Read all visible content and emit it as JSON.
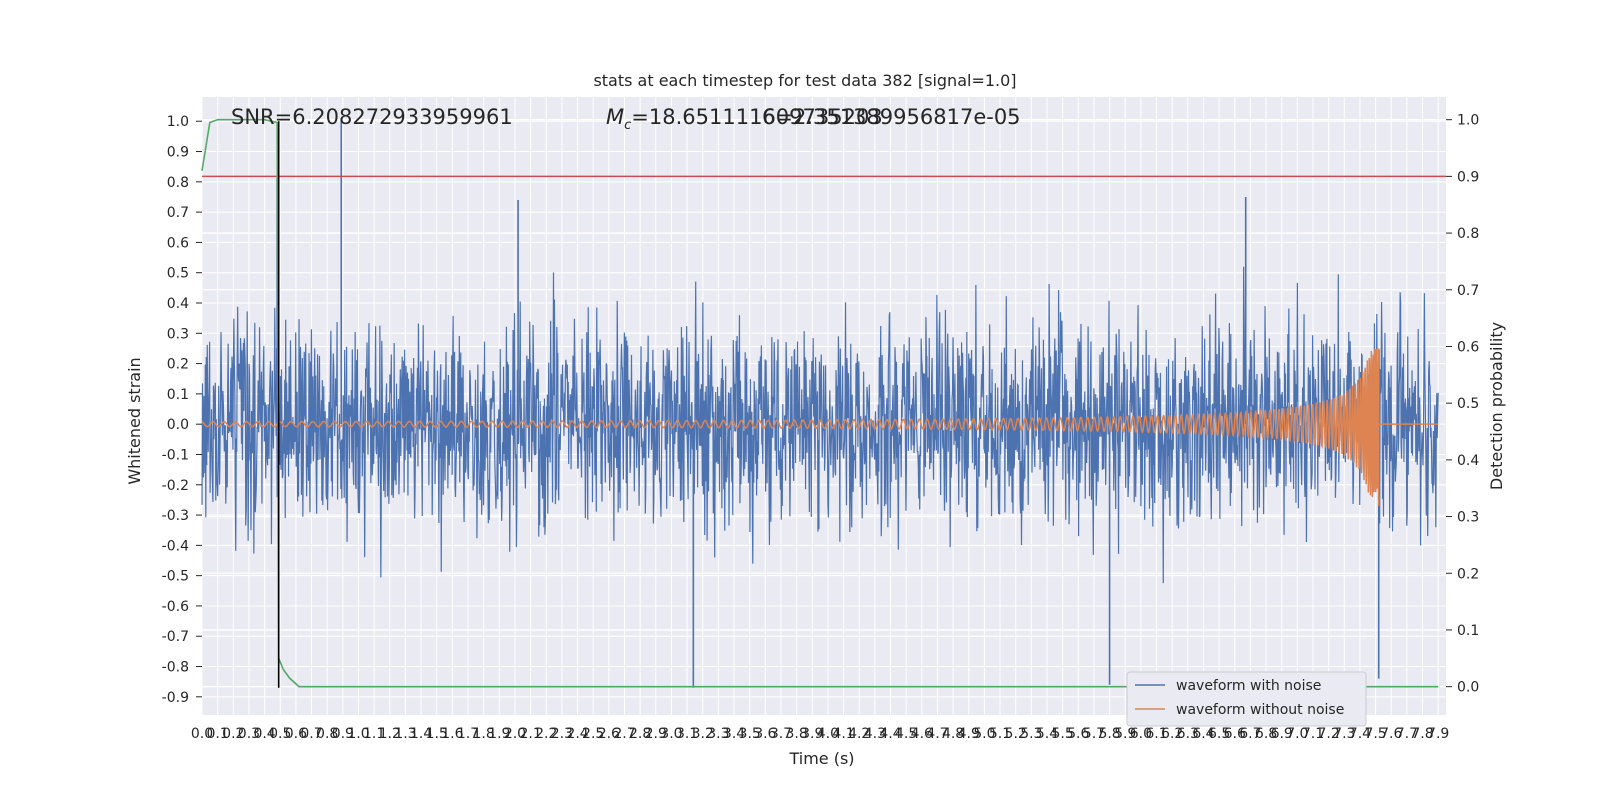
{
  "chart_data": {
    "type": "line",
    "title": "stats at each timestep for test data 382 [signal=1.0]",
    "xlabel": "Time (s)",
    "ylabel": "Whitened strain",
    "y2label": "Detection probability",
    "xlim": [
      0.0,
      7.95
    ],
    "ylim": [
      -0.96,
      1.08
    ],
    "y2lim": [
      -0.05,
      1.04
    ],
    "x_ticks": [
      "0.0",
      "0.1",
      "0.2",
      "0.3",
      "0.4",
      "0.5",
      "0.6",
      "0.7",
      "0.8",
      "0.9",
      "1.0",
      "1.1",
      "1.2",
      "1.3",
      "1.4",
      "1.5",
      "1.6",
      "1.7",
      "1.8",
      "1.9",
      "2.0",
      "2.1",
      "2.2",
      "2.3",
      "2.4",
      "2.5",
      "2.6",
      "2.7",
      "2.8",
      "2.9",
      "3.0",
      "3.1",
      "3.2",
      "3.3",
      "3.4",
      "3.5",
      "3.6",
      "3.7",
      "3.8",
      "3.9",
      "4.0",
      "4.1",
      "4.2",
      "4.3",
      "4.4",
      "4.5",
      "4.6",
      "4.7",
      "4.8",
      "4.9",
      "5.0",
      "5.1",
      "5.2",
      "5.3",
      "5.4",
      "5.5",
      "5.6",
      "5.7",
      "5.8",
      "5.9",
      "6.0",
      "6.1",
      "6.2",
      "6.3",
      "6.4",
      "6.5",
      "6.6",
      "6.7",
      "6.8",
      "6.9",
      "7.0",
      "7.1",
      "7.2",
      "7.3",
      "7.4",
      "7.5",
      "7.6",
      "7.7",
      "7.8",
      "7.9"
    ],
    "y_ticks": [
      "1.0",
      "0.9",
      "0.8",
      "0.7",
      "0.6",
      "0.5",
      "0.4",
      "0.3",
      "0.2",
      "0.1",
      "0.0",
      "-0.1",
      "-0.2",
      "-0.3",
      "-0.4",
      "-0.5",
      "-0.6",
      "-0.7",
      "-0.8",
      "-0.9"
    ],
    "y2_ticks": [
      "1.0",
      "0.9",
      "0.8",
      "0.7",
      "0.6",
      "0.5",
      "0.4",
      "0.3",
      "0.2",
      "0.1",
      "0.0"
    ],
    "annotations": {
      "snr": "SNR=6.208272933959961",
      "mc_symbol": "M",
      "mc_subscript": "c",
      "mc_value": "=18.651111609735203",
      "overlap": "6=2.351389956817e-05"
    },
    "series": [
      {
        "name": "waveform with noise",
        "color": "#4c72b0",
        "description_type": "noise",
        "envelope_high": 0.42,
        "envelope_low": -0.4,
        "peaks": [
          [
            0.89,
            1.0
          ],
          [
            0.48,
            0.81
          ],
          [
            2.02,
            0.74
          ],
          [
            6.67,
            0.75
          ],
          [
            3.14,
            -0.87
          ],
          [
            5.8,
            -0.86
          ],
          [
            7.52,
            -0.84
          ]
        ]
      },
      {
        "name": "waveform without noise",
        "color": "#dd8452",
        "description_type": "chirp",
        "amplitude_start": 0.008,
        "amplitude_peak": 0.25,
        "amplitude_min": -0.27,
        "merger_time": 7.52
      }
    ],
    "detection_probability": {
      "color": "#55a868",
      "x": [
        0.0,
        0.05,
        0.1,
        0.2,
        0.3,
        0.4,
        0.48,
        0.49,
        0.52,
        0.56,
        0.62,
        7.9
      ],
      "y": [
        0.91,
        0.995,
        1.0,
        1.0,
        1.0,
        1.0,
        0.995,
        0.05,
        0.03,
        0.015,
        0.0,
        0.0
      ]
    },
    "threshold": {
      "y2": 0.9,
      "color": "#c44e52"
    },
    "marker_line": {
      "x": 0.49,
      "y_from": -0.87,
      "y_to": 1.0,
      "color": "#000000"
    },
    "legend_position": "lower-right",
    "grid": true
  }
}
